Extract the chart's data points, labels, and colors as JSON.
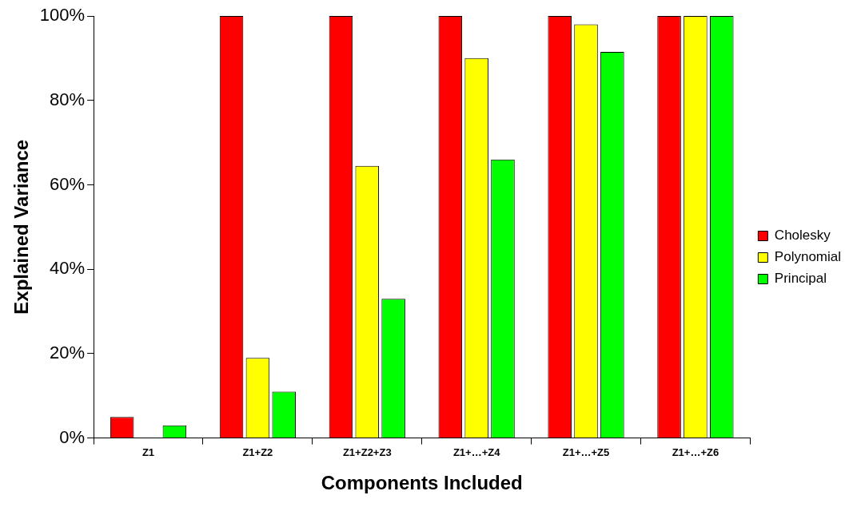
{
  "chart_data": {
    "type": "bar",
    "xlabel": "Components Included",
    "ylabel": "Explained Variance",
    "categories": [
      "Z1",
      "Z1+Z2",
      "Z1+Z2+Z3",
      "Z1+…+Z4",
      "Z1+…+Z5",
      "Z1+…+Z6"
    ],
    "series": [
      {
        "name": "Cholesky",
        "color": "#ff0000",
        "values": [
          5,
          100,
          100,
          100,
          100,
          100
        ]
      },
      {
        "name": "Polynomial",
        "color": "#ffff00",
        "values": [
          0,
          19,
          64.5,
          90,
          98,
          100
        ]
      },
      {
        "name": "Principal",
        "color": "#00ff00",
        "values": [
          3,
          11,
          33,
          66,
          91.5,
          100
        ]
      }
    ],
    "ylim": [
      0,
      100
    ],
    "yticks": [
      {
        "value": 0,
        "label": "0%"
      },
      {
        "value": 20,
        "label": "20%"
      },
      {
        "value": 40,
        "label": "40%"
      },
      {
        "value": 60,
        "label": "60%"
      },
      {
        "value": 80,
        "label": "80%"
      },
      {
        "value": 100,
        "label": "100%"
      }
    ],
    "grid": false,
    "legend": "right"
  }
}
